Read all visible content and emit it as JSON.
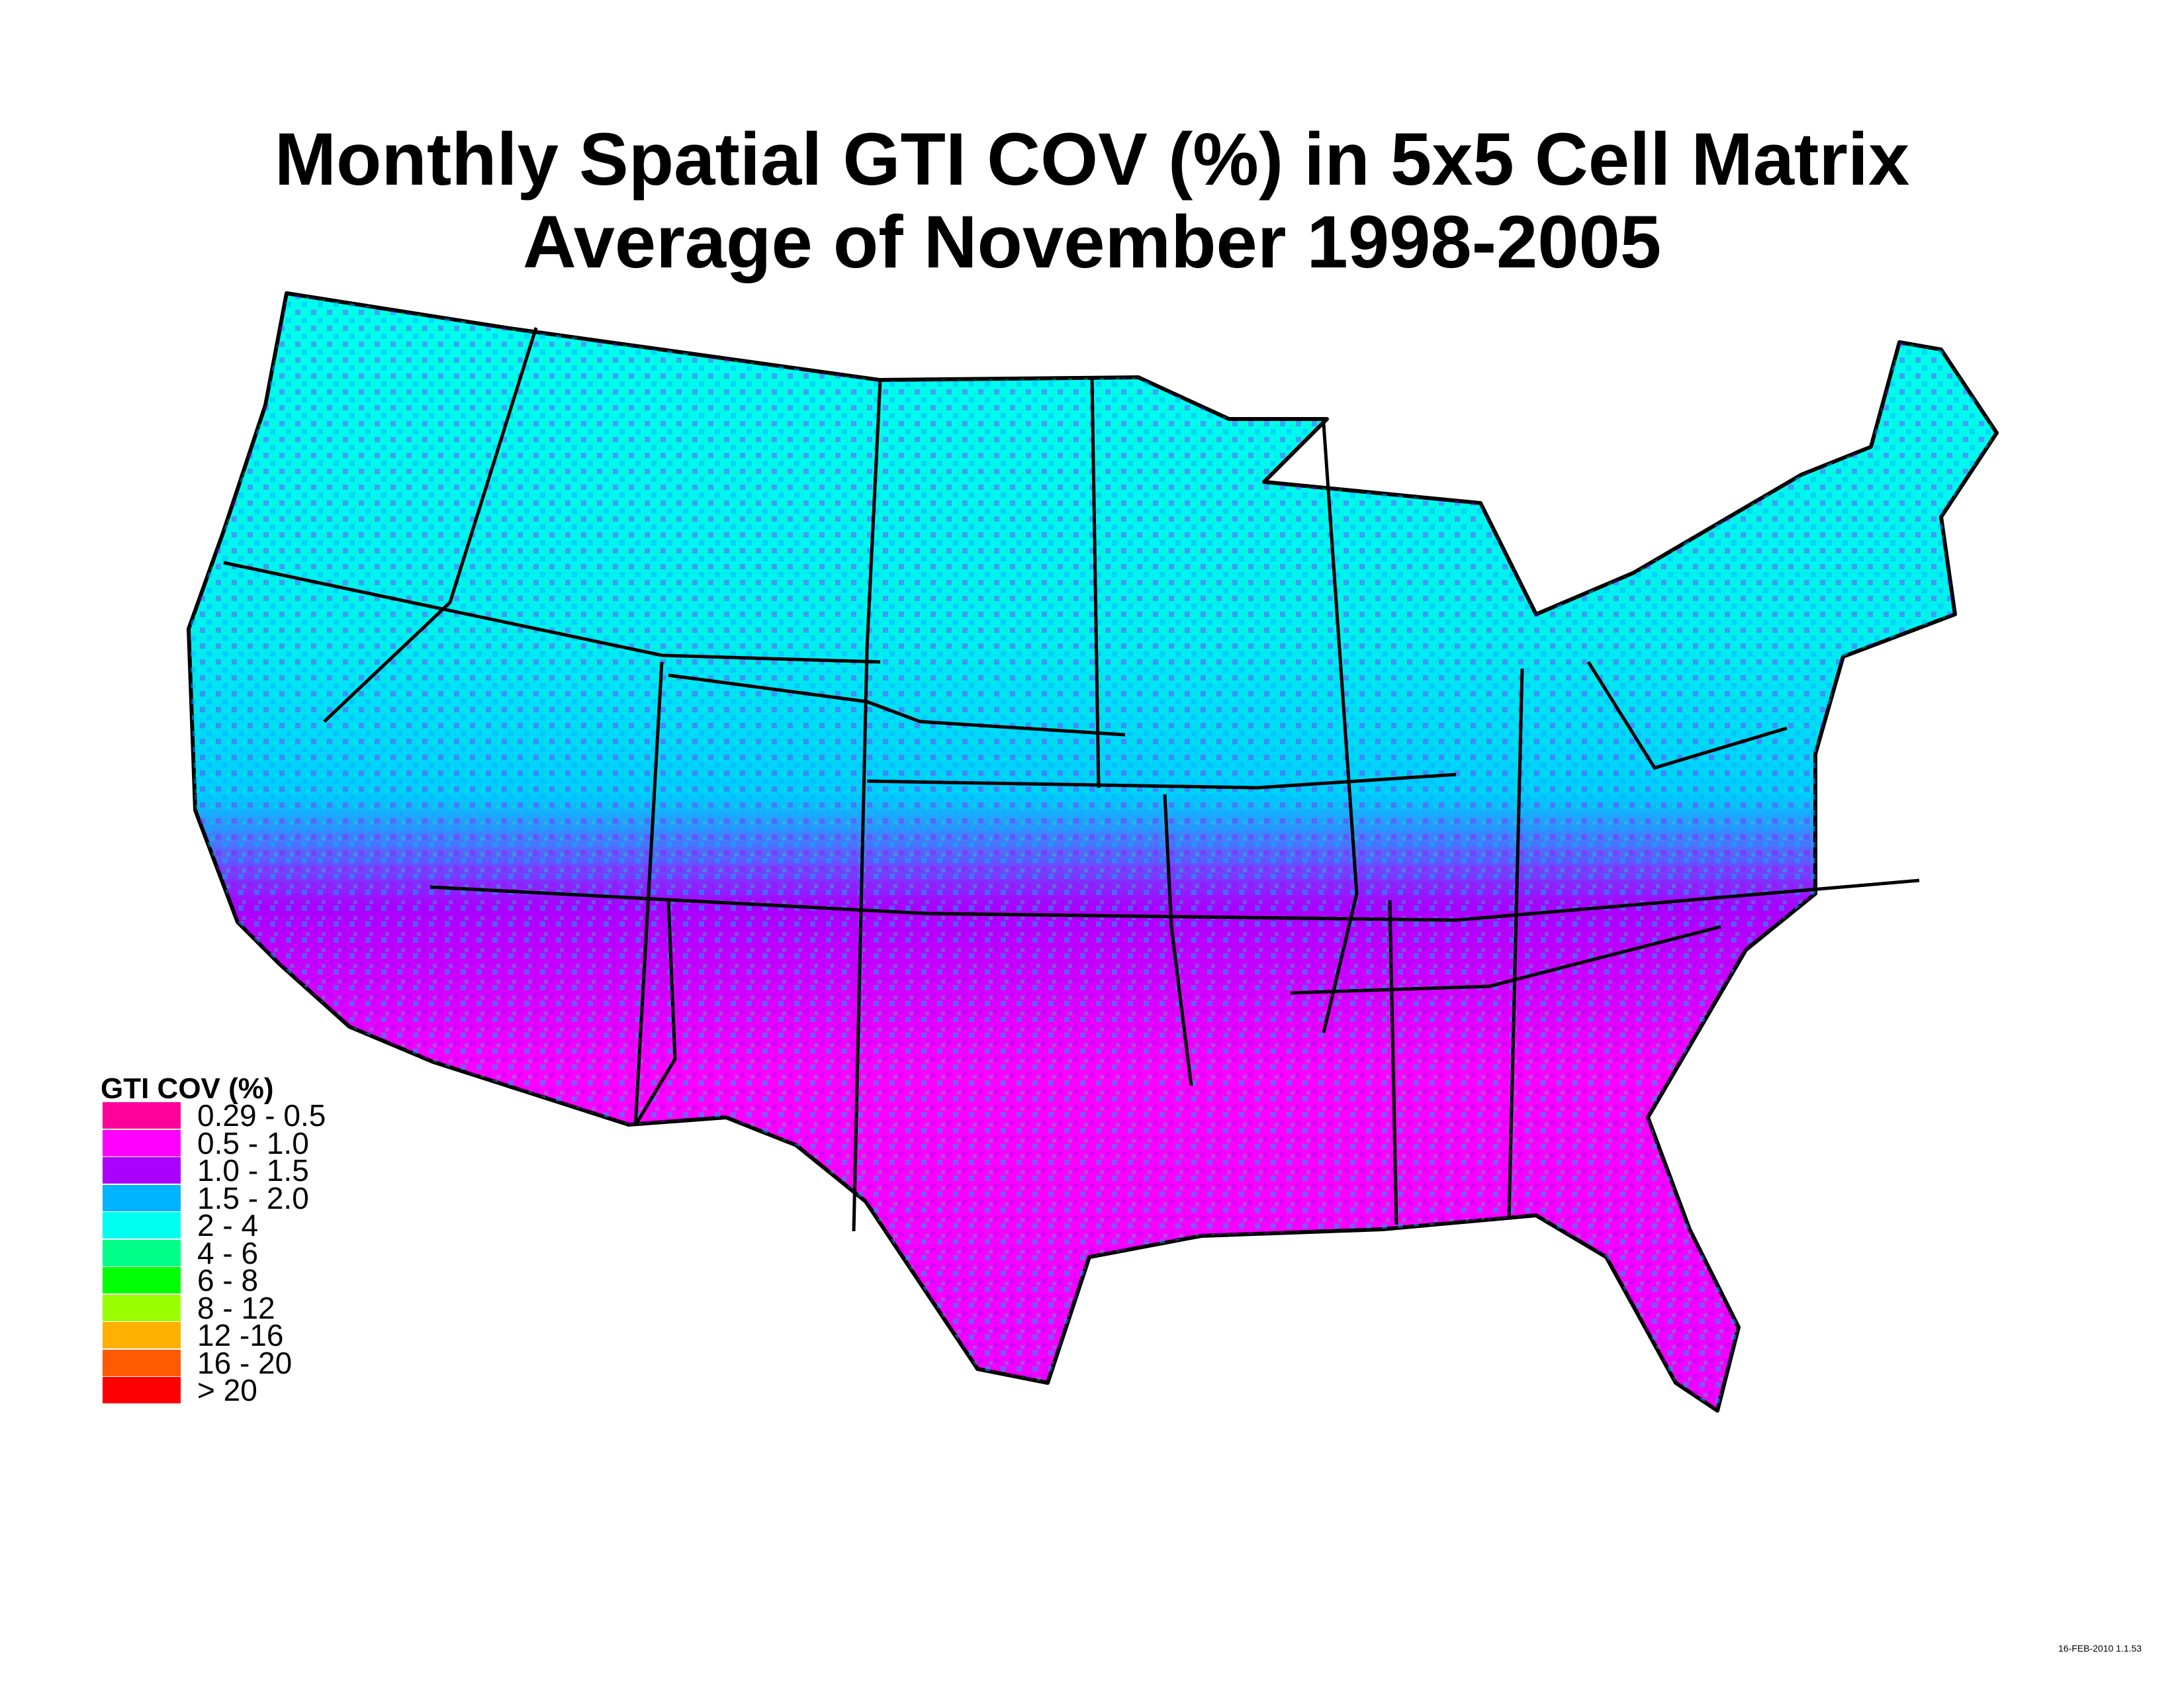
{
  "title": {
    "line1": "Monthly Spatial GTI COV (%) in 5x5 Cell Matrix",
    "line2": "Average of November 1998-2005"
  },
  "legend": {
    "title": "GTI COV (%)",
    "items": [
      {
        "label": "0.29 - 0.5",
        "color": "#ff0099"
      },
      {
        "label": "0.5 - 1.0",
        "color": "#ff00ff"
      },
      {
        "label": "1.0 - 1.5",
        "color": "#aa00ff"
      },
      {
        "label": "1.5 - 2.0",
        "color": "#00b4ff"
      },
      {
        "label": "2 - 4",
        "color": "#00ffee"
      },
      {
        "label": "4 - 6",
        "color": "#00ff88"
      },
      {
        "label": "6 - 8",
        "color": "#00ff00"
      },
      {
        "label": "8 - 12",
        "color": "#99ff00"
      },
      {
        "label": "12 -16",
        "color": "#ffb000"
      },
      {
        "label": "16 - 20",
        "color": "#ff5a00"
      },
      {
        "label": "> 20",
        "color": "#ff0000"
      }
    ]
  },
  "footer": {
    "stamp": "16-FEB-2010 1.1.53"
  }
}
